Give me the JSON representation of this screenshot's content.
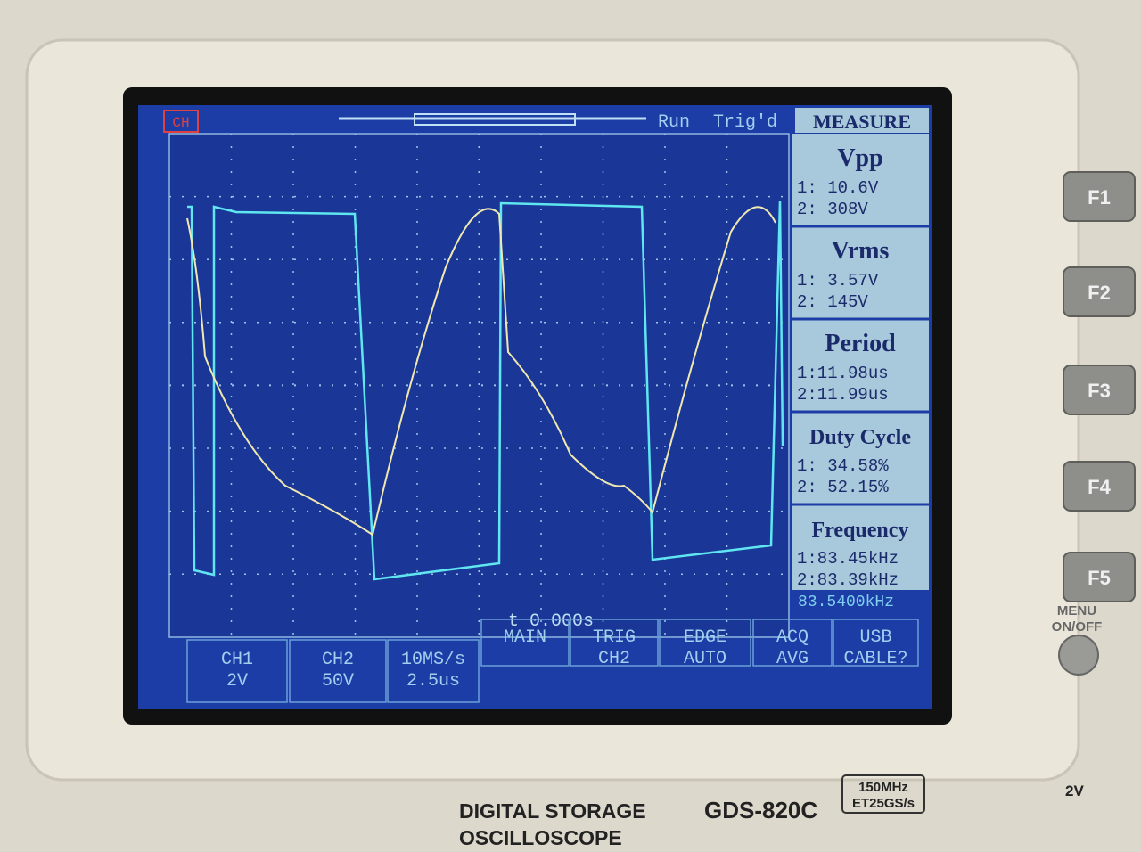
{
  "status": {
    "channel": "CH",
    "run": "Run",
    "trigger_state": "Trig'd",
    "menu_title": "MEASURE"
  },
  "measurements": [
    {
      "name": "Vpp",
      "ch1": "1: 10.6V",
      "ch2": "2: 308V"
    },
    {
      "name": "Vrms",
      "ch1": "1: 3.57V",
      "ch2": "2: 145V"
    },
    {
      "name": "Period",
      "ch1": "1:11.98us",
      "ch2": "2:11.99us"
    },
    {
      "name": "Duty Cycle",
      "ch1": "1: 34.58%",
      "ch2": "2: 52.15%"
    },
    {
      "name": "Frequency",
      "ch1": "1:83.45kHz",
      "ch2": "2:83.39kHz"
    }
  ],
  "trigger_frequency": "83.5400kHz",
  "time_offset": "t 0.000s",
  "bottom_menu": [
    {
      "lines": [
        "CH1",
        "2V"
      ]
    },
    {
      "lines": [
        "CH2",
        "50V"
      ]
    },
    {
      "lines": [
        "10MS/s",
        "2.5us"
      ]
    },
    {
      "lines": [
        "MAIN"
      ]
    },
    {
      "lines": [
        "TRIG",
        "CH2"
      ]
    },
    {
      "lines": [
        "EDGE",
        "AUTO"
      ]
    },
    {
      "lines": [
        "ACQ",
        "AVG"
      ]
    },
    {
      "lines": [
        "USB",
        "CABLE?"
      ]
    }
  ],
  "function_keys": [
    "F1",
    "F2",
    "F3",
    "F4",
    "F5"
  ],
  "menu_button": [
    "MENU",
    "ON/OFF"
  ],
  "front_panel": {
    "label_lines": [
      "DIGITAL STORAGE",
      "OSCILLOSCOPE"
    ],
    "model": "GDS-820C",
    "spec_lines": [
      "150MHz",
      "ET25GS/s"
    ],
    "probe_comp": "2V"
  }
}
